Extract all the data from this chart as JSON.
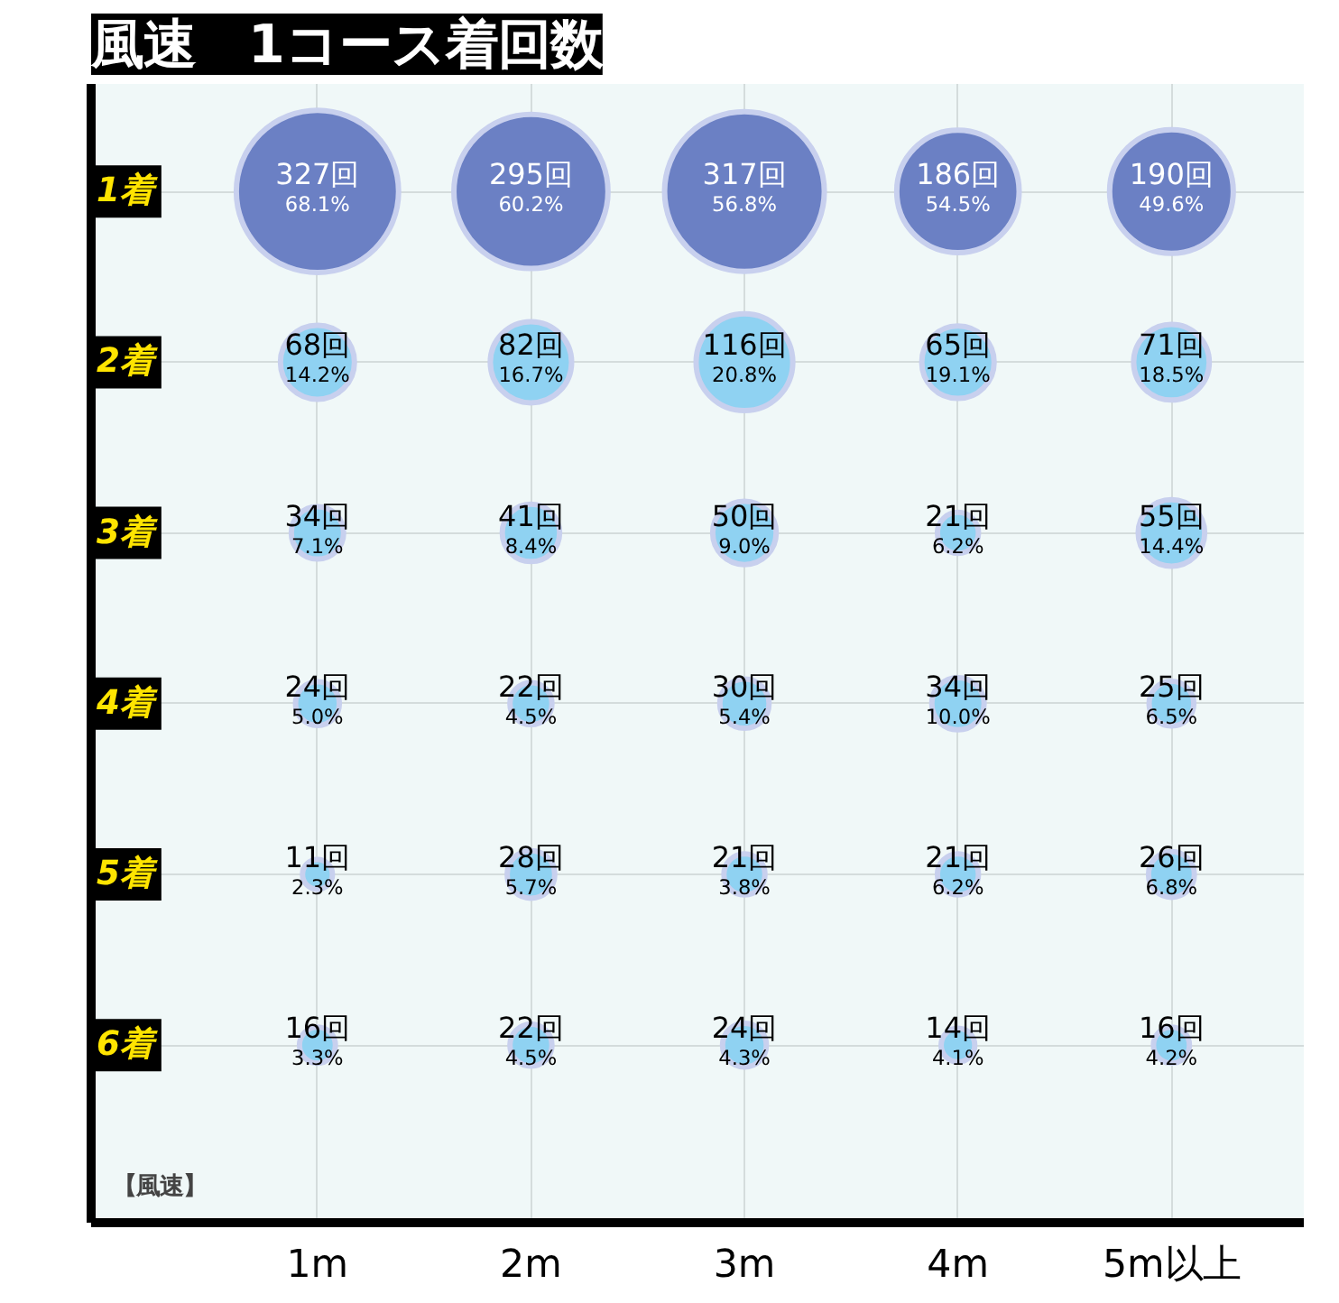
{
  "chart_data": {
    "type": "bubble",
    "title": "風速　1コース着回数",
    "xlabel": "【風速】",
    "categories": [
      "1m",
      "2m",
      "3m",
      "4m",
      "5m以上"
    ],
    "ylim": [
      7.04,
      0.37
    ],
    "yticks": [
      {
        "value": 1,
        "label": "1着"
      },
      {
        "value": 2,
        "label": "2着"
      },
      {
        "value": 3,
        "label": "3着"
      },
      {
        "value": 4,
        "label": "4着"
      },
      {
        "value": 5,
        "label": "5着"
      },
      {
        "value": 6,
        "label": "6着"
      }
    ],
    "series": [
      {
        "color": "#6b80c4",
        "values": [
          1,
          1,
          1,
          1,
          1
        ],
        "sizes": [
          1,
          0.902,
          0.969,
          0.569,
          0.581
        ],
        "value_labels": [
          "327回\n68.1%",
          "295回\n60.2%",
          "317回\n56.8%",
          "186回\n54.5%",
          "190回\n49.6%"
        ]
      },
      {
        "color": "#8fd2f2",
        "values": [
          2,
          2,
          2,
          2,
          2
        ],
        "sizes": [
          0.208,
          0.251,
          0.355,
          0.199,
          0.217
        ],
        "value_labels": [
          "68回\n14.2%",
          "82回\n16.7%",
          "116回\n20.8%",
          "65回\n19.1%",
          "71回\n18.5%"
        ]
      },
      {
        "color": "#8fd2f2",
        "values": [
          3,
          3,
          3,
          3,
          3
        ],
        "sizes": [
          0.104,
          0.125,
          0.153,
          0.064,
          0.168
        ],
        "value_labels": [
          "34回\n7.1%",
          "41回\n8.4%",
          "50回\n9.0%",
          "21回\n6.2%",
          "55回\n14.4%"
        ]
      },
      {
        "color": "#8fd2f2",
        "values": [
          4,
          4,
          4,
          4,
          4
        ],
        "sizes": [
          0.073,
          0.067,
          0.092,
          0.104,
          0.076
        ],
        "value_labels": [
          "24回\n5.0%",
          "22回\n4.5%",
          "30回\n5.4%",
          "34回\n10.0%",
          "25回\n6.5%"
        ]
      },
      {
        "color": "#8fd2f2",
        "values": [
          5,
          5,
          5,
          5,
          5
        ],
        "sizes": [
          0.034,
          0.086,
          0.064,
          0.064,
          0.08
        ],
        "value_labels": [
          "11回\n2.3%",
          "28回\n5.7%",
          "21回\n3.8%",
          "21回\n6.2%",
          "26回\n6.8%"
        ]
      },
      {
        "color": "#8fd2f2",
        "values": [
          6,
          6,
          6,
          6,
          6
        ],
        "sizes": [
          0.049,
          0.067,
          0.073,
          0.043,
          0.049
        ],
        "value_labels": [
          "16回\n3.3%",
          "22回\n4.5%",
          "24回\n4.3%",
          "14回\n4.1%",
          "16回\n4.2%"
        ]
      }
    ],
    "grid": true
  }
}
